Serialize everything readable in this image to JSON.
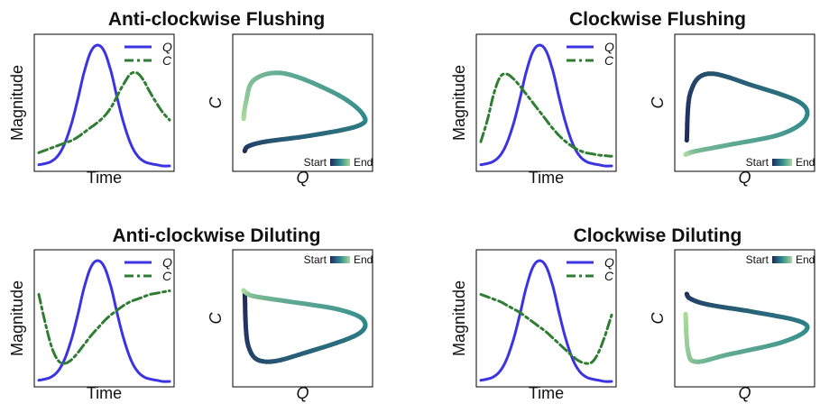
{
  "colors": {
    "q_line": "#3b34e0",
    "c_line": "#2e7d32",
    "gradient_start": "#1f2a5c",
    "gradient_mid": "#2f8a8c",
    "gradient_end": "#a8d89a"
  },
  "chart_data": [
    {
      "type": "line",
      "title": "Anti-clockwise Flushing",
      "time_panel": {
        "xlabel": "Time",
        "ylabel": "Magnitude",
        "legend": [
          "Q",
          "C"
        ],
        "series": [
          {
            "name": "Q",
            "x": [
              0,
              0.05,
              0.1,
              0.15,
              0.2,
              0.25,
              0.3,
              0.35,
              0.4,
              0.45,
              0.5,
              0.55,
              0.6,
              0.65,
              0.7,
              0.75,
              0.8,
              0.85,
              0.9,
              0.95,
              1.0
            ],
            "y": [
              0.01,
              0.02,
              0.04,
              0.09,
              0.19,
              0.35,
              0.56,
              0.79,
              0.95,
              1.0,
              0.95,
              0.79,
              0.56,
              0.35,
              0.19,
              0.09,
              0.04,
              0.02,
              0.01,
              0.0,
              0.0
            ]
          },
          {
            "name": "C",
            "x": [
              0,
              0.05,
              0.1,
              0.15,
              0.2,
              0.25,
              0.3,
              0.35,
              0.4,
              0.45,
              0.5,
              0.55,
              0.6,
              0.65,
              0.7,
              0.75,
              0.8,
              0.85,
              0.9,
              0.95,
              1.0
            ],
            "y": [
              0.11,
              0.13,
              0.15,
              0.17,
              0.19,
              0.21,
              0.24,
              0.28,
              0.32,
              0.36,
              0.41,
              0.48,
              0.58,
              0.68,
              0.76,
              0.77,
              0.71,
              0.61,
              0.52,
              0.44,
              0.38
            ]
          }
        ]
      },
      "phase_panel": {
        "xlabel": "Q",
        "ylabel": "C",
        "colorbar": {
          "start_label": "Start",
          "end_label": "End",
          "position": "bottom-right"
        },
        "x": [
          0.01,
          0.04,
          0.19,
          0.56,
          0.95,
          1.0,
          0.79,
          0.35,
          0.09,
          0.02,
          0.0
        ],
        "y": [
          0.11,
          0.15,
          0.19,
          0.24,
          0.32,
          0.41,
          0.58,
          0.76,
          0.71,
          0.52,
          0.38
        ]
      }
    },
    {
      "type": "line",
      "title": "Clockwise Flushing",
      "time_panel": {
        "xlabel": "Time",
        "ylabel": "Magnitude",
        "legend": [
          "Q",
          "C"
        ],
        "series": [
          {
            "name": "Q",
            "x": [
              0,
              0.05,
              0.1,
              0.15,
              0.2,
              0.25,
              0.3,
              0.35,
              0.4,
              0.45,
              0.5,
              0.55,
              0.6,
              0.65,
              0.7,
              0.75,
              0.8,
              0.85,
              0.9,
              0.95,
              1.0
            ],
            "y": [
              0.01,
              0.02,
              0.04,
              0.09,
              0.19,
              0.35,
              0.56,
              0.79,
              0.95,
              1.0,
              0.95,
              0.79,
              0.56,
              0.35,
              0.19,
              0.09,
              0.04,
              0.02,
              0.01,
              0.0,
              0.0
            ]
          },
          {
            "name": "C",
            "x": [
              0,
              0.05,
              0.1,
              0.15,
              0.2,
              0.25,
              0.3,
              0.35,
              0.4,
              0.45,
              0.5,
              0.55,
              0.6,
              0.65,
              0.7,
              0.75,
              0.8,
              0.85,
              0.9,
              0.95,
              1.0
            ],
            "y": [
              0.2,
              0.38,
              0.6,
              0.74,
              0.76,
              0.72,
              0.66,
              0.59,
              0.52,
              0.45,
              0.38,
              0.31,
              0.25,
              0.2,
              0.16,
              0.13,
              0.11,
              0.1,
              0.09,
              0.085,
              0.08
            ]
          }
        ]
      },
      "phase_panel": {
        "xlabel": "Q",
        "ylabel": "C",
        "colorbar": {
          "start_label": "Start",
          "end_label": "End",
          "position": "bottom-right"
        },
        "x": [
          0.01,
          0.04,
          0.19,
          0.56,
          0.95,
          1.0,
          0.79,
          0.35,
          0.09,
          0.02,
          0.0
        ],
        "y": [
          0.2,
          0.6,
          0.76,
          0.66,
          0.52,
          0.38,
          0.25,
          0.16,
          0.11,
          0.09,
          0.08
        ]
      }
    },
    {
      "type": "line",
      "title": "Anti-clockwise Diluting",
      "time_panel": {
        "xlabel": "Time",
        "ylabel": "Magnitude",
        "legend": [
          "Q",
          "C"
        ],
        "series": [
          {
            "name": "Q",
            "x": [
              0,
              0.05,
              0.1,
              0.15,
              0.2,
              0.25,
              0.3,
              0.35,
              0.4,
              0.45,
              0.5,
              0.55,
              0.6,
              0.65,
              0.7,
              0.75,
              0.8,
              0.85,
              0.9,
              0.95,
              1.0
            ],
            "y": [
              0.01,
              0.02,
              0.04,
              0.09,
              0.19,
              0.35,
              0.56,
              0.79,
              0.95,
              1.0,
              0.95,
              0.79,
              0.56,
              0.35,
              0.19,
              0.09,
              0.04,
              0.02,
              0.01,
              0.0,
              0.0
            ]
          },
          {
            "name": "C",
            "x": [
              0,
              0.05,
              0.1,
              0.15,
              0.2,
              0.25,
              0.3,
              0.35,
              0.4,
              0.45,
              0.5,
              0.55,
              0.6,
              0.65,
              0.7,
              0.75,
              0.8,
              0.85,
              0.9,
              0.95,
              1.0
            ],
            "y": [
              0.72,
              0.48,
              0.28,
              0.17,
              0.15,
              0.18,
              0.24,
              0.31,
              0.38,
              0.44,
              0.5,
              0.55,
              0.59,
              0.63,
              0.66,
              0.68,
              0.7,
              0.72,
              0.73,
              0.74,
              0.75
            ]
          }
        ]
      },
      "phase_panel": {
        "xlabel": "Q",
        "ylabel": "C",
        "colorbar": {
          "start_label": "Start",
          "end_label": "End",
          "position": "top-right"
        },
        "x": [
          0.01,
          0.04,
          0.19,
          0.56,
          0.95,
          1.0,
          0.79,
          0.35,
          0.09,
          0.02,
          0.0
        ],
        "y": [
          0.72,
          0.28,
          0.15,
          0.24,
          0.38,
          0.5,
          0.59,
          0.66,
          0.7,
          0.73,
          0.75
        ]
      }
    },
    {
      "type": "line",
      "title": "Clockwise Diluting",
      "time_panel": {
        "xlabel": "Time",
        "ylabel": "Magnitude",
        "legend": [
          "Q",
          "C"
        ],
        "series": [
          {
            "name": "Q",
            "x": [
              0,
              0.05,
              0.1,
              0.15,
              0.2,
              0.25,
              0.3,
              0.35,
              0.4,
              0.45,
              0.5,
              0.55,
              0.6,
              0.65,
              0.7,
              0.75,
              0.8,
              0.85,
              0.9,
              0.95,
              1.0
            ],
            "y": [
              0.01,
              0.02,
              0.04,
              0.09,
              0.19,
              0.35,
              0.56,
              0.79,
              0.95,
              1.0,
              0.95,
              0.79,
              0.56,
              0.35,
              0.19,
              0.09,
              0.04,
              0.02,
              0.01,
              0.0,
              0.0
            ]
          },
          {
            "name": "C",
            "x": [
              0,
              0.05,
              0.1,
              0.15,
              0.2,
              0.25,
              0.3,
              0.35,
              0.4,
              0.45,
              0.5,
              0.55,
              0.6,
              0.65,
              0.7,
              0.75,
              0.8,
              0.85,
              0.9,
              0.95,
              1.0
            ],
            "y": [
              0.72,
              0.7,
              0.68,
              0.66,
              0.63,
              0.6,
              0.57,
              0.53,
              0.49,
              0.45,
              0.41,
              0.36,
              0.31,
              0.26,
              0.21,
              0.17,
              0.15,
              0.16,
              0.24,
              0.38,
              0.55
            ]
          }
        ]
      },
      "phase_panel": {
        "xlabel": "Q",
        "ylabel": "C",
        "colorbar": {
          "start_label": "Start",
          "end_label": "End",
          "position": "top-right"
        },
        "x": [
          0.01,
          0.04,
          0.19,
          0.56,
          0.95,
          1.0,
          0.79,
          0.35,
          0.09,
          0.02,
          0.0
        ],
        "y": [
          0.72,
          0.68,
          0.63,
          0.57,
          0.49,
          0.41,
          0.31,
          0.21,
          0.15,
          0.24,
          0.55
        ]
      }
    }
  ]
}
